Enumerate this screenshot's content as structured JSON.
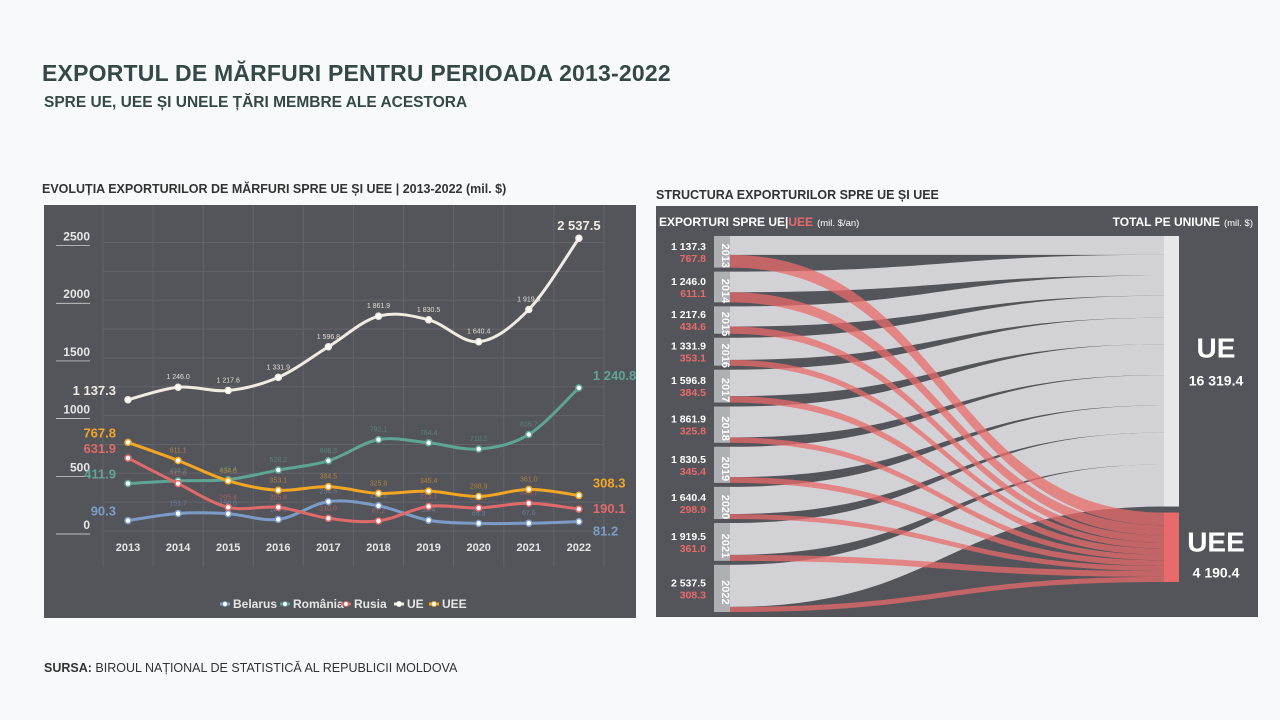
{
  "header": {
    "title": "EXPORTUL DE MĂRFURI PENTRU PERIOADA 2013-2022",
    "subtitle": "SPRE UE, UEE ȘI UNELE ȚĂRI MEMBRE ALE ACESTORA"
  },
  "left_title": "EVOLUȚIA EXPORTURILOR DE MĂRFURI SPRE UE ȘI UEE | 2013-2022 (mil. $)",
  "right_title": "STRUCTURA EXPORTURILOR SPRE UE ȘI UEE",
  "source": {
    "label": "SURSA:",
    "text": "BIROUL NAȚIONAL DE STATISTICĂ AL REPUBLICII MOLDOVA"
  },
  "colors": {
    "panel": "#54555b",
    "ue": "#f1ece2",
    "uee": "#f2a622",
    "romania": "#5fa596",
    "rusia": "#e06a6a",
    "belarus": "#7c9cc7",
    "flow_ue": "#d7d7da",
    "flow_uee": "#e86a6a"
  },
  "chart_data": [
    {
      "type": "line",
      "title": "EVOLUȚIA EXPORTURILOR DE MĂRFURI SPRE UE ȘI UEE | 2013-2022 (mil. $)",
      "x": [
        "2013",
        "2014",
        "2015",
        "2016",
        "2017",
        "2018",
        "2019",
        "2020",
        "2021",
        "2022"
      ],
      "ylim": [
        0,
        2600
      ],
      "yticks": [
        "0",
        "500",
        "1000",
        "1500",
        "2000",
        "2500"
      ],
      "series": [
        {
          "name": "Belarus",
          "color": "#7c9cc7",
          "values": [
            90.3,
            151.7,
            150.0,
            100.5,
            254.5,
            218.6,
            93.4,
            65.9,
            67.6,
            81.2
          ],
          "labels": [
            "90.3",
            "151.7",
            "150.0",
            "100.5",
            "254.5",
            "218.6",
            "93.4",
            "65.9",
            "67.6",
            "81.2"
          ]
        },
        {
          "name": "România",
          "color": "#5fa596",
          "values": [
            411.9,
            434.2,
            445.4,
            528.2,
            608.3,
            792.1,
            764.4,
            710.2,
            836.7,
            1240.8
          ],
          "labels": [
            "411.9",
            "434.2",
            "445.4",
            "528.2",
            "608.3",
            "792.1",
            "764.4",
            "710.2",
            "836.7",
            "1 240.8"
          ]
        },
        {
          "name": "Rusia",
          "color": "#e06a6a",
          "values": [
            631.9,
            411.0,
            205.4,
            205.8,
            110.0,
            87.2,
            213.1,
            199.7,
            240.7,
            190.1
          ],
          "labels": [
            "631.9",
            "411.0",
            "205.4",
            "205.8",
            "110.0",
            "87.2",
            "213.1",
            "199.7",
            "240.7",
            "190.1"
          ]
        },
        {
          "name": "UE",
          "color": "#f1ece2",
          "values": [
            1137.3,
            1246.0,
            1217.6,
            1331.9,
            1596.8,
            1861.9,
            1830.5,
            1640.4,
            1919.5,
            2537.5
          ],
          "labels": [
            "1 137.3",
            "1 246.0",
            "1 217.6",
            "1 331.9",
            "1 596.8",
            "1 861.9",
            "1 830.5",
            "1 640.4",
            "1 919.5",
            "2 537.5"
          ]
        },
        {
          "name": "UEE",
          "color": "#f2a622",
          "values": [
            767.8,
            611.1,
            434.6,
            353.1,
            384.5,
            325.8,
            345.4,
            298.9,
            361.0,
            308.3
          ],
          "labels": [
            "767.8",
            "611.1",
            "434.6",
            "353.1",
            "384.5",
            "325.8",
            "345.4",
            "298.9",
            "361.0",
            "308.3"
          ]
        }
      ],
      "legend": [
        "Belarus",
        "România",
        "Rusia",
        "UE",
        "UEE"
      ],
      "legend_position": "bottom-center"
    },
    {
      "type": "sankey",
      "title": "STRUCTURA EXPORTURILOR SPRE UE ȘI UEE",
      "header_left_1": "EXPORTURI SPRE UE",
      "header_sep": "|",
      "header_left_2": "UEE",
      "header_left_unit": "(mil. $/an)",
      "header_right": "TOTAL PE UNIUNE",
      "header_right_unit": "(mil. $)",
      "years": [
        "2013",
        "2014",
        "2015",
        "2016",
        "2017",
        "2018",
        "2019",
        "2020",
        "2021",
        "2022"
      ],
      "ue": [
        1137.3,
        1246.0,
        1217.6,
        1331.9,
        1596.8,
        1861.9,
        1830.5,
        1640.4,
        1919.5,
        2537.5
      ],
      "uee": [
        767.8,
        611.1,
        434.6,
        353.1,
        384.5,
        325.8,
        345.4,
        298.9,
        361.0,
        308.3
      ],
      "ue_labels": [
        "1 137.3",
        "1 246.0",
        "1 217.6",
        "1 331.9",
        "1 596.8",
        "1 861.9",
        "1 830.5",
        "1 640.4",
        "1 919.5",
        "2 537.5"
      ],
      "uee_labels": [
        "767.8",
        "611.1",
        "434.6",
        "353.1",
        "384.5",
        "325.8",
        "345.4",
        "298.9",
        "361.0",
        "308.3"
      ],
      "totals": [
        {
          "name": "UE",
          "label": "16 319.4"
        },
        {
          "name": "UEE",
          "label": "4 190.4"
        }
      ]
    }
  ]
}
